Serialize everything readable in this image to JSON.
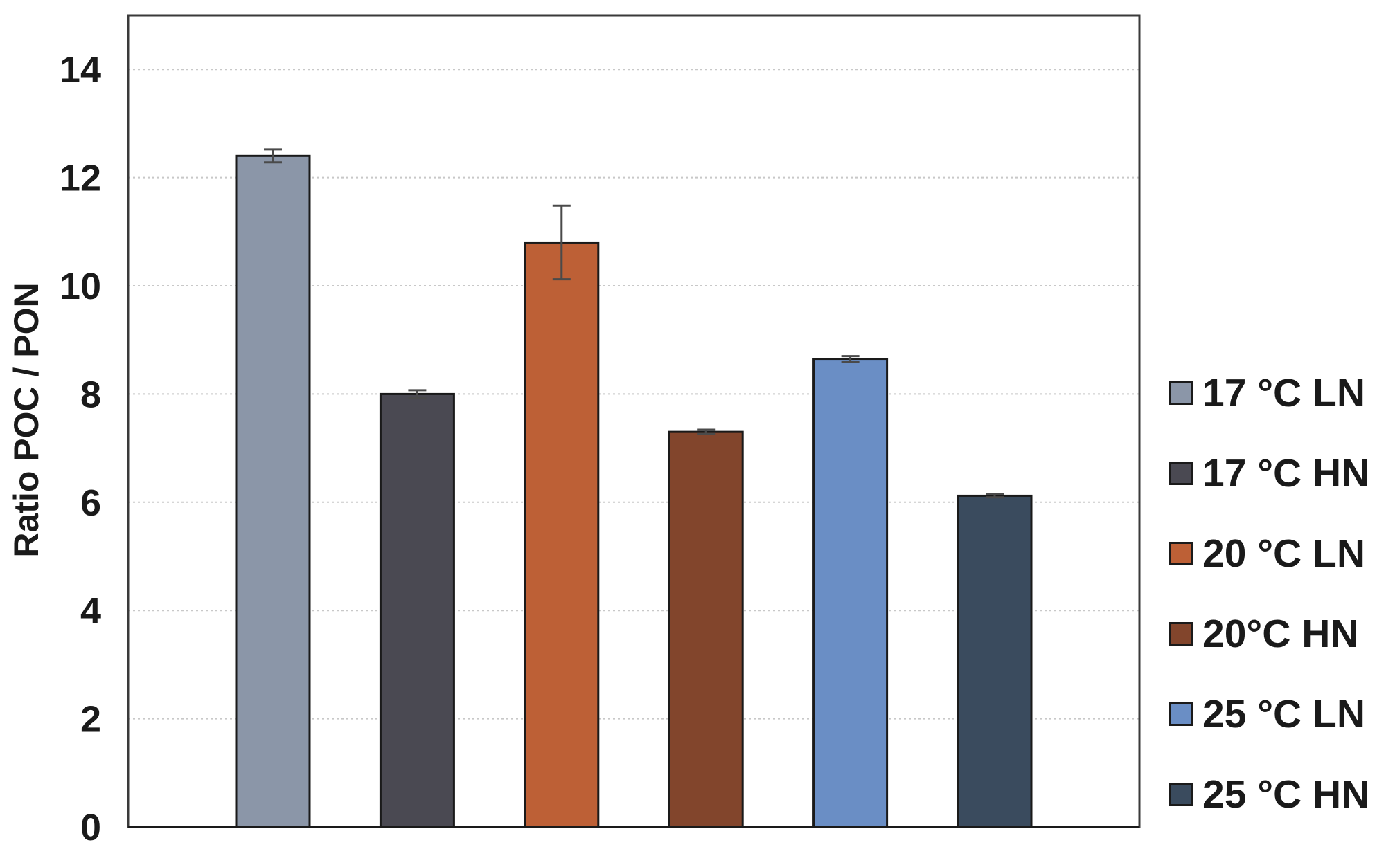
{
  "chart_data": {
    "type": "bar",
    "title": "",
    "xlabel": "",
    "ylabel": "Ratio POC / PON",
    "ylim": [
      0,
      15
    ],
    "yticks": [
      0,
      2,
      4,
      6,
      8,
      10,
      12,
      14
    ],
    "grid": "horizontal dotted",
    "legend_position": "right",
    "categories": [
      "17 °C LN",
      "17 °C HN",
      "20 °C LN",
      "20°C HN",
      "25 °C LN",
      "25 °C HN"
    ],
    "values": [
      12.4,
      8.0,
      10.8,
      7.3,
      8.65,
      6.12
    ],
    "errors": [
      0.12,
      0.07,
      0.68,
      0.04,
      0.05,
      0.03
    ],
    "colors": [
      "#8b96a8",
      "#4a4952",
      "#bd6036",
      "#82452c",
      "#6a8ec5",
      "#3a4b5e"
    ]
  }
}
